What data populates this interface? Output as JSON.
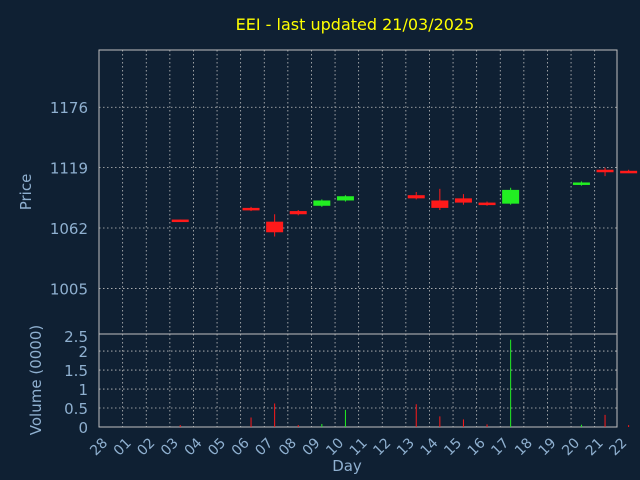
{
  "title": "EEI - last updated 21/03/2025",
  "colors": {
    "background": "#0f2033",
    "plot": "#0f2033",
    "title": "#ffff00",
    "axis_text": "#8fb0d0",
    "grid": "#c0c0c0",
    "up": "#22ee22",
    "down": "#ff1a1a"
  },
  "chart_data": [
    {
      "type": "candlestick",
      "ylabel": "Price",
      "yticks": [
        1005,
        1062,
        1119,
        1176
      ],
      "ylim": [
        962,
        1230
      ],
      "grid": true,
      "candles": [
        {
          "day": "28",
          "open": 1070,
          "high": 1070,
          "low": 1068,
          "close": 1068
        },
        {
          "day": "03",
          "open": 1081,
          "high": 1082,
          "low": 1078,
          "close": 1079
        },
        {
          "day": "04",
          "open": 1068,
          "high": 1075,
          "low": 1054,
          "close": 1058
        },
        {
          "day": "05",
          "open": 1078,
          "high": 1079,
          "low": 1074,
          "close": 1075
        },
        {
          "day": "06",
          "open": 1083,
          "high": 1089,
          "low": 1082,
          "close": 1088
        },
        {
          "day": "07",
          "open": 1088,
          "high": 1093,
          "low": 1087,
          "close": 1092
        },
        {
          "day": "10",
          "open": 1093,
          "high": 1096,
          "low": 1089,
          "close": 1090
        },
        {
          "day": "11",
          "open": 1088,
          "high": 1099,
          "low": 1079,
          "close": 1081
        },
        {
          "day": "12",
          "open": 1090,
          "high": 1094,
          "low": 1084,
          "close": 1086
        },
        {
          "day": "13",
          "open": 1086,
          "high": 1087,
          "low": 1083,
          "close": 1085
        },
        {
          "day": "14",
          "open": 1085,
          "high": 1100,
          "low": 1084,
          "close": 1098
        },
        {
          "day": "17",
          "open": 1103,
          "high": 1106,
          "low": 1102,
          "close": 1105
        },
        {
          "day": "18",
          "open": 1117,
          "high": 1119,
          "low": 1111,
          "close": 1116
        },
        {
          "day": "19",
          "open": 1116,
          "high": 1117,
          "low": 1114,
          "close": 1115
        },
        {
          "day": "20",
          "open": 1111,
          "high": 1118,
          "low": 1101,
          "close": 1107
        },
        {
          "day": "21",
          "open": 1107,
          "high": 1109,
          "low": 1106,
          "close": 1108
        }
      ]
    },
    {
      "type": "bar",
      "xlabel": "Day",
      "ylabel": "Volume (0000)",
      "yticks": [
        0,
        0.5,
        1,
        1.5,
        2,
        2.5
      ],
      "ytick_labels": [
        "0",
        "0.5",
        "1",
        "1.5",
        "2",
        "2.5"
      ],
      "ylim": [
        0,
        2.5
      ],
      "grid": true,
      "x_tick_labels": [
        "28",
        "01",
        "02",
        "03",
        "04",
        "05",
        "06",
        "07",
        "08",
        "09",
        "10",
        "11",
        "12",
        "13",
        "14",
        "15",
        "16",
        "17",
        "18",
        "19",
        "20",
        "21",
        "22"
      ],
      "bars": [
        {
          "day": "28",
          "value": 0.05,
          "dir": "down"
        },
        {
          "day": "03",
          "value": 0.25,
          "dir": "down"
        },
        {
          "day": "04",
          "value": 0.62,
          "dir": "down"
        },
        {
          "day": "05",
          "value": 0.05,
          "dir": "down"
        },
        {
          "day": "06",
          "value": 0.08,
          "dir": "up"
        },
        {
          "day": "07",
          "value": 0.45,
          "dir": "up"
        },
        {
          "day": "10",
          "value": 0.6,
          "dir": "down"
        },
        {
          "day": "11",
          "value": 0.28,
          "dir": "down"
        },
        {
          "day": "12",
          "value": 0.2,
          "dir": "down"
        },
        {
          "day": "13",
          "value": 0.07,
          "dir": "down"
        },
        {
          "day": "14",
          "value": 2.3,
          "dir": "up"
        },
        {
          "day": "17",
          "value": 0.06,
          "dir": "up"
        },
        {
          "day": "18",
          "value": 0.32,
          "dir": "down"
        },
        {
          "day": "19",
          "value": 0.05,
          "dir": "down"
        },
        {
          "day": "20",
          "value": 0.25,
          "dir": "down"
        },
        {
          "day": "21",
          "value": 0.9,
          "dir": "up"
        }
      ]
    }
  ]
}
